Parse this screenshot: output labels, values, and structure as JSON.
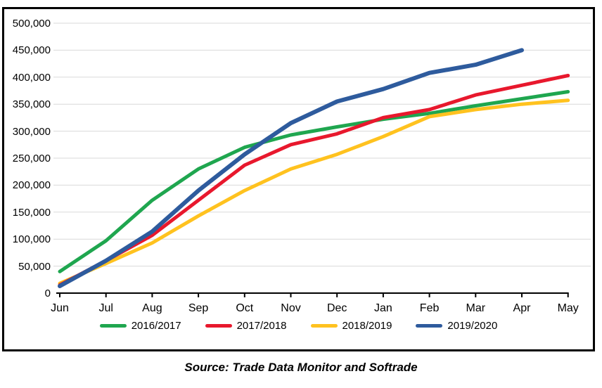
{
  "chart_data": {
    "type": "line",
    "title": "",
    "xlabel": "",
    "ylabel": "",
    "categories": [
      "Jun",
      "Jul",
      "Aug",
      "Sep",
      "Oct",
      "Nov",
      "Dec",
      "Jan",
      "Feb",
      "Mar",
      "Apr",
      "May"
    ],
    "series": [
      {
        "name": "2016/2017",
        "color": "#1FA64F",
        "stroke_width": 5,
        "values": [
          40000,
          97000,
          172000,
          230000,
          270000,
          293000,
          308000,
          322000,
          333000,
          347000,
          360000,
          373000
        ]
      },
      {
        "name": "2017/2018",
        "color": "#E8182D",
        "stroke_width": 5,
        "values": [
          15000,
          60000,
          107000,
          172000,
          237000,
          275000,
          295000,
          325000,
          340000,
          367000,
          385000,
          403000
        ]
      },
      {
        "name": "2018/2019",
        "color": "#FFC21F",
        "stroke_width": 5,
        "values": [
          18000,
          55000,
          93000,
          143000,
          190000,
          230000,
          257000,
          290000,
          327000,
          340000,
          350000,
          357000
        ]
      },
      {
        "name": "2019/2020",
        "color": "#2E5B9D",
        "stroke_width": 6,
        "values": [
          13000,
          60000,
          114000,
          190000,
          257000,
          315000,
          355000,
          378000,
          408000,
          423000,
          450000,
          null
        ]
      }
    ],
    "ylim": [
      0,
      500000
    ],
    "y_tick_step": 50000,
    "y_tick_labels": [
      "0",
      "50,000",
      "100,000",
      "150,000",
      "200,000",
      "250,000",
      "300,000",
      "350,000",
      "400,000",
      "450,000",
      "500,000"
    ],
    "grid": "horizontal",
    "gridline_color": "#D9D9D9",
    "axis_color": "#000000",
    "legend_position": "bottom"
  },
  "source_note": "Source: Trade Data Monitor and Softrade"
}
